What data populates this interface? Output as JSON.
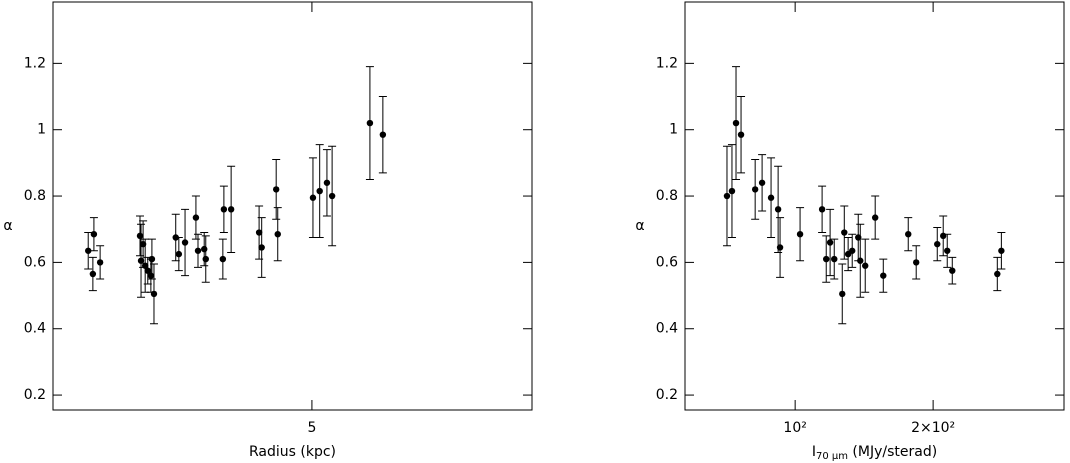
{
  "chart_data": [
    {
      "type": "scatter",
      "x_label": [
        "Radius (kpc)"
      ],
      "y_label": "α",
      "xlim": [
        0,
        9.25
      ],
      "xticks": [
        5
      ],
      "ylim": [
        0.155,
        1.385
      ],
      "yticks": [
        0.2,
        0.4,
        0.6,
        0.8,
        1,
        1.2
      ],
      "x": [
        0.68,
        0.77,
        0.79,
        0.91,
        1.68,
        1.7,
        1.74,
        1.78,
        1.83,
        1.89,
        1.91,
        1.95,
        2.37,
        2.43,
        2.55,
        2.76,
        2.8,
        2.92,
        2.95,
        3.28,
        3.3,
        3.44,
        3.98,
        4.03,
        4.31,
        4.34,
        5.02,
        5.15,
        5.29,
        5.39,
        6.12,
        6.37
      ],
      "series": [
        {
          "color": "#000000",
          "values": [
            0.635,
            0.565,
            0.685,
            0.6,
            0.68,
            0.605,
            0.655,
            0.59,
            0.575,
            0.56,
            0.61,
            0.505,
            0.675,
            0.625,
            0.66,
            0.735,
            0.635,
            0.64,
            0.61,
            0.61,
            0.76,
            0.76,
            0.69,
            0.645,
            0.82,
            0.685,
            0.795,
            0.815,
            0.84,
            0.8,
            1.02,
            0.985
          ],
          "errors": [
            0.055,
            0.05,
            0.05,
            0.05,
            0.06,
            0.11,
            0.07,
            0.08,
            0.04,
            0.05,
            0.06,
            0.09,
            0.07,
            0.05,
            0.1,
            0.065,
            0.05,
            0.05,
            0.07,
            0.06,
            0.07,
            0.13,
            0.08,
            0.09,
            0.09,
            0.08,
            0.12,
            0.14,
            0.1,
            0.15,
            0.17,
            0.115
          ]
        }
      ]
    },
    {
      "type": "scatter",
      "x_label": [
        "I",
        "70 μm",
        " (MJy/sterad)"
      ],
      "y_label": "α",
      "xscale": "log",
      "xlim": [
        57.5,
        386
      ],
      "xticks": [
        {
          "value": 100,
          "label": "10²"
        },
        {
          "value": 200,
          "label": "2×10²"
        }
      ],
      "ylim": [
        0.155,
        1.385
      ],
      "yticks": [
        0.2,
        0.4,
        0.6,
        0.8,
        1,
        1.2
      ],
      "x": [
        71.0,
        72.8,
        74.3,
        76.2,
        81.8,
        84.7,
        88.6,
        91.8,
        92.7,
        102.5,
        114.5,
        116.9,
        119.2,
        121.7,
        126.7,
        128.0,
        130.5,
        133.2,
        137.3,
        138.7,
        142.2,
        149.5,
        155.7,
        176.5,
        183.7,
        204.2,
        210.4,
        214.7,
        220.2,
        276.1,
        281.8
      ],
      "series": [
        {
          "color": "#000000",
          "values": [
            0.8,
            0.815,
            1.02,
            0.985,
            0.82,
            0.84,
            0.795,
            0.76,
            0.645,
            0.685,
            0.76,
            0.61,
            0.66,
            0.61,
            0.505,
            0.69,
            0.625,
            0.635,
            0.675,
            0.605,
            0.59,
            0.735,
            0.56,
            0.685,
            0.6,
            0.655,
            0.68,
            0.635,
            0.575,
            0.565,
            0.635
          ],
          "errors": [
            0.15,
            0.14,
            0.17,
            0.115,
            0.09,
            0.085,
            0.12,
            0.13,
            0.09,
            0.08,
            0.07,
            0.07,
            0.1,
            0.06,
            0.09,
            0.08,
            0.05,
            0.05,
            0.07,
            0.11,
            0.08,
            0.065,
            0.05,
            0.05,
            0.05,
            0.05,
            0.06,
            0.05,
            0.04,
            0.05,
            0.055
          ]
        }
      ]
    }
  ]
}
